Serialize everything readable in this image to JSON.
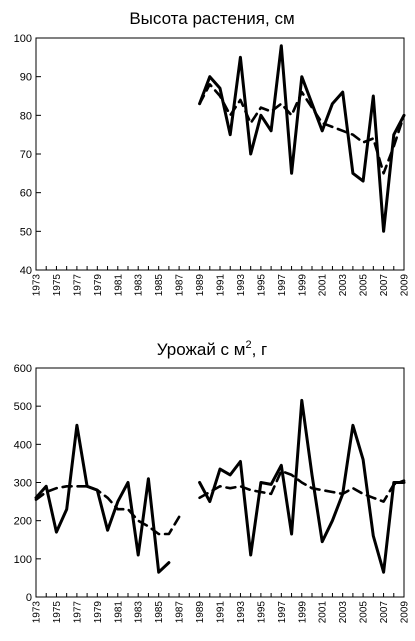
{
  "chart_data": [
    {
      "type": "line",
      "title": "Высота растения, см",
      "xlabel": "",
      "ylabel": "",
      "xlim": [
        1973,
        2009
      ],
      "ylim": [
        40,
        100
      ],
      "x_ticks": [
        "1973",
        "1975",
        "1977",
        "1979",
        "1981",
        "1983",
        "1985",
        "1987",
        "1989",
        "1991",
        "1993",
        "1995",
        "1997",
        "1999",
        "2001",
        "2003",
        "2005",
        "2007",
        "2009"
      ],
      "y_ticks": [
        40,
        50,
        60,
        70,
        80,
        90,
        100
      ],
      "grid": false,
      "legend": "none",
      "series": [
        {
          "style": "solid",
          "x": [
            1989,
            1990,
            1991,
            1992,
            1993,
            1994,
            1995,
            1996,
            1997,
            1998,
            1999,
            2000,
            2001,
            2002,
            2003,
            2004,
            2005,
            2006,
            2007,
            2008,
            2009
          ],
          "y": [
            83,
            90,
            87,
            75,
            95,
            70,
            80,
            76,
            98,
            65,
            90,
            83,
            76,
            83,
            86,
            65,
            63,
            85,
            50,
            75,
            80
          ]
        },
        {
          "style": "dashed",
          "x": [
            1989,
            1990,
            1991,
            1992,
            1993,
            1994,
            1995,
            1996,
            1997,
            1998,
            1999,
            2000,
            2001,
            2002,
            2003,
            2004,
            2005,
            2006,
            2007,
            2008,
            2009
          ],
          "y": [
            83,
            88,
            85,
            80,
            84,
            78,
            82,
            81,
            83,
            80,
            86,
            82,
            78,
            77,
            76,
            75,
            73,
            74,
            65,
            72,
            80
          ]
        }
      ]
    },
    {
      "type": "line",
      "title_main": "Урожай с м",
      "title_sup": "2",
      "title_tail": ", г",
      "xlabel": "",
      "ylabel": "",
      "xlim": [
        1973,
        2009
      ],
      "ylim": [
        0,
        600
      ],
      "x_ticks": [
        "1973",
        "1975",
        "1977",
        "1979",
        "1981",
        "1983",
        "1985",
        "1987",
        "1989",
        "1991",
        "1993",
        "1995",
        "1997",
        "1999",
        "2001",
        "2003",
        "2005",
        "2007",
        "2009"
      ],
      "y_ticks": [
        0,
        100,
        200,
        300,
        400,
        500,
        600
      ],
      "grid": false,
      "legend": "none",
      "series": [
        {
          "style": "solid",
          "x": [
            1973,
            1974,
            1975,
            1976,
            1977,
            1978,
            1979,
            1980,
            1981,
            1982,
            1983,
            1984,
            1985,
            1986,
            1987,
            1988,
            1989,
            1990,
            1991,
            1992,
            1993,
            1994,
            1995,
            1996,
            1997,
            1998,
            1999,
            2000,
            2001,
            2002,
            2003,
            2004,
            2005,
            2006,
            2007,
            2008,
            2009
          ],
          "y": [
            260,
            290,
            170,
            230,
            450,
            290,
            280,
            175,
            250,
            300,
            110,
            310,
            65,
            90,
            null,
            null,
            300,
            250,
            335,
            320,
            355,
            110,
            300,
            295,
            345,
            165,
            515,
            320,
            145,
            200,
            270,
            450,
            360,
            160,
            65,
            300,
            300
          ]
        },
        {
          "style": "dashed",
          "x": [
            1973,
            1974,
            1975,
            1976,
            1977,
            1978,
            1979,
            1980,
            1981,
            1982,
            1983,
            1984,
            1985,
            1986,
            1987,
            1988,
            1989,
            1990,
            1991,
            1992,
            1993,
            1994,
            1995,
            1996,
            1997,
            1998,
            1999,
            2000,
            2001,
            2002,
            2003,
            2004,
            2005,
            2006,
            2007,
            2008,
            2009
          ],
          "y": [
            255,
            275,
            285,
            290,
            290,
            290,
            280,
            260,
            230,
            230,
            200,
            185,
            165,
            165,
            210,
            null,
            260,
            275,
            290,
            285,
            290,
            280,
            275,
            270,
            330,
            320,
            300,
            285,
            280,
            275,
            270,
            285,
            270,
            260,
            250,
            295,
            305
          ]
        }
      ]
    }
  ]
}
